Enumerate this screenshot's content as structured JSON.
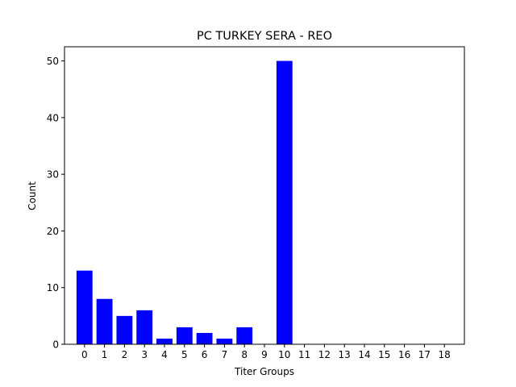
{
  "chart_data": {
    "type": "bar",
    "title": "PC TURKEY SERA - REO",
    "xlabel": "Titer Groups",
    "ylabel": "Count",
    "categories": [
      "0",
      "1",
      "2",
      "3",
      "4",
      "5",
      "6",
      "7",
      "8",
      "9",
      "10",
      "11",
      "12",
      "13",
      "14",
      "15",
      "16",
      "17",
      "18"
    ],
    "values": [
      13,
      8,
      5,
      6,
      1,
      3,
      2,
      1,
      3,
      0,
      50,
      0,
      0,
      0,
      0,
      0,
      0,
      0,
      0
    ],
    "ylim": [
      0,
      52.5
    ],
    "yticks": [
      0,
      10,
      20,
      30,
      40,
      50
    ],
    "bar_color": "#0000ff",
    "grid": false,
    "legend": "none"
  }
}
